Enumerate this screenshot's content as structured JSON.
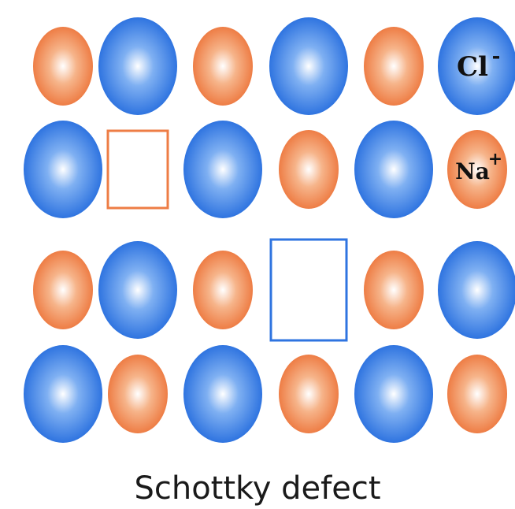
{
  "colors": {
    "cation": "#ee7d45",
    "anion": "#2f74e0",
    "background": "#ffffff"
  },
  "labels": {
    "anion": "Cl",
    "anion_charge": "-",
    "cation": "Na",
    "cation_charge": "+"
  },
  "lattice": [
    [
      "cation",
      "anion",
      "cation",
      "anion",
      "cation",
      "anion"
    ],
    [
      "anion",
      "cation-vacancy",
      "anion",
      "cation",
      "anion",
      "cation"
    ],
    [
      "cation",
      "anion",
      "cation",
      "anion-vacancy",
      "cation",
      "anion"
    ],
    [
      "anion",
      "cation",
      "anion",
      "cation",
      "anion",
      "cation"
    ]
  ],
  "labeled_sites": [
    {
      "row": 0,
      "col": 5,
      "ion": "anion"
    },
    {
      "row": 1,
      "col": 5,
      "ion": "cation"
    }
  ],
  "caption": "Schottky defect"
}
